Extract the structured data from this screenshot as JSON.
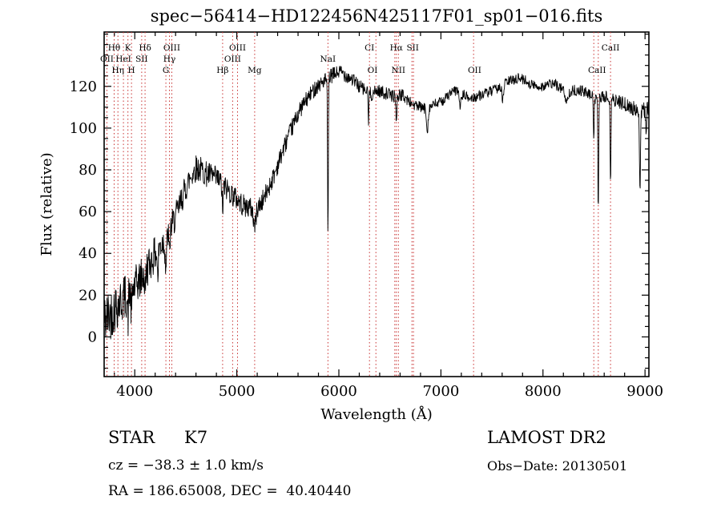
{
  "chart_data": {
    "type": "line",
    "title": "spec−56414−HD122456N425117F01_sp01−016.fits",
    "xlabel": "Wavelength (Å)",
    "ylabel": "Flux (relative)",
    "xlim": [
      3700,
      9038
    ],
    "ylim": [
      -19,
      146
    ],
    "xticks": [
      4000,
      5000,
      6000,
      7000,
      8000,
      9000
    ],
    "x_minor_step": 200,
    "yticks": [
      0,
      20,
      40,
      60,
      80,
      100,
      120
    ],
    "y_minor_step": 5,
    "grid": false,
    "legend": "none",
    "line_color": "#000000",
    "marker_color": "#c83232",
    "marker_label_color": "#8b1a1a",
    "series": [
      {
        "name": "spectrum",
        "samples": 1500,
        "noise_seed": 42,
        "continuum": [
          [
            3700,
            8
          ],
          [
            3760,
            11
          ],
          [
            3820,
            15
          ],
          [
            3880,
            18
          ],
          [
            3940,
            21
          ],
          [
            4000,
            24
          ],
          [
            4060,
            28
          ],
          [
            4120,
            33
          ],
          [
            4180,
            38
          ],
          [
            4240,
            43
          ],
          [
            4300,
            47
          ],
          [
            4360,
            53
          ],
          [
            4420,
            60
          ],
          [
            4480,
            69
          ],
          [
            4540,
            76
          ],
          [
            4600,
            81
          ],
          [
            4650,
            80
          ],
          [
            4700,
            78
          ],
          [
            4760,
            77
          ],
          [
            4820,
            75
          ],
          [
            4880,
            72
          ],
          [
            4940,
            69
          ],
          [
            5000,
            66
          ],
          [
            5060,
            63
          ],
          [
            5120,
            62
          ],
          [
            5180,
            61
          ],
          [
            5240,
            64
          ],
          [
            5300,
            70
          ],
          [
            5360,
            77
          ],
          [
            5420,
            85
          ],
          [
            5480,
            93
          ],
          [
            5540,
            100
          ],
          [
            5600,
            107
          ],
          [
            5660,
            112
          ],
          [
            5720,
            116
          ],
          [
            5780,
            120
          ],
          [
            5840,
            122
          ],
          [
            5900,
            124
          ],
          [
            5960,
            126
          ],
          [
            6020,
            127
          ],
          [
            6080,
            125
          ],
          [
            6140,
            123
          ],
          [
            6200,
            120
          ],
          [
            6260,
            118
          ],
          [
            6320,
            116
          ],
          [
            6380,
            118
          ],
          [
            6440,
            117
          ],
          [
            6500,
            116
          ],
          [
            6560,
            115
          ],
          [
            6620,
            116
          ],
          [
            6680,
            113
          ],
          [
            6740,
            111
          ],
          [
            6800,
            110
          ],
          [
            6860,
            109
          ],
          [
            6920,
            111
          ],
          [
            6980,
            112
          ],
          [
            7040,
            114
          ],
          [
            7100,
            117
          ],
          [
            7160,
            118
          ],
          [
            7220,
            116
          ],
          [
            7280,
            114
          ],
          [
            7340,
            115
          ],
          [
            7400,
            116
          ],
          [
            7460,
            117
          ],
          [
            7520,
            118
          ],
          [
            7580,
            120
          ],
          [
            7640,
            122
          ],
          [
            7700,
            123
          ],
          [
            7760,
            124
          ],
          [
            7820,
            123
          ],
          [
            7880,
            121
          ],
          [
            7940,
            120
          ],
          [
            8000,
            120
          ],
          [
            8060,
            121
          ],
          [
            8120,
            121
          ],
          [
            8180,
            119
          ],
          [
            8240,
            117
          ],
          [
            8300,
            118
          ],
          [
            8360,
            118
          ],
          [
            8420,
            117
          ],
          [
            8480,
            115
          ],
          [
            8540,
            114
          ],
          [
            8600,
            115
          ],
          [
            8660,
            114
          ],
          [
            8720,
            113
          ],
          [
            8780,
            112
          ],
          [
            8840,
            110
          ],
          [
            8900,
            109
          ],
          [
            8960,
            108
          ],
          [
            9038,
            110
          ]
        ],
        "absorption_features": [
          {
            "center": 3933,
            "depth": 12,
            "sigma": 5
          },
          {
            "center": 3968,
            "depth": 12,
            "sigma": 5
          },
          {
            "center": 4101,
            "depth": 10,
            "sigma": 5
          },
          {
            "center": 4226,
            "depth": 14,
            "sigma": 5
          },
          {
            "center": 4305,
            "depth": 14,
            "sigma": 7
          },
          {
            "center": 4340,
            "depth": 12,
            "sigma": 5
          },
          {
            "center": 4861,
            "depth": 13,
            "sigma": 5
          },
          {
            "center": 5175,
            "depth": 8,
            "sigma": 12
          },
          {
            "center": 5893,
            "depth": 76,
            "sigma": 4
          },
          {
            "center": 6290,
            "depth": 16,
            "sigma": 3
          },
          {
            "center": 6563,
            "depth": 14,
            "sigma": 4
          },
          {
            "center": 6867,
            "depth": 10,
            "sigma": 8
          },
          {
            "center": 7190,
            "depth": 6,
            "sigma": 10
          },
          {
            "center": 7605,
            "depth": 8,
            "sigma": 8
          },
          {
            "center": 8230,
            "depth": 6,
            "sigma": 10
          },
          {
            "center": 8498,
            "depth": 18,
            "sigma": 4
          },
          {
            "center": 8542,
            "depth": 55,
            "sigma": 4
          },
          {
            "center": 8662,
            "depth": 40,
            "sigma": 4
          },
          {
            "center": 8950,
            "depth": 38,
            "sigma": 5
          },
          {
            "center": 9010,
            "depth": 15,
            "sigma": 4
          }
        ],
        "noise_profile": [
          [
            3700,
            13
          ],
          [
            4000,
            10
          ],
          [
            4400,
            7
          ],
          [
            4800,
            6
          ],
          [
            5200,
            5
          ],
          [
            5600,
            4
          ],
          [
            6000,
            3.5
          ],
          [
            6500,
            3
          ],
          [
            7000,
            2.5
          ],
          [
            8200,
            2.5
          ],
          [
            8600,
            3
          ],
          [
            9038,
            4
          ]
        ]
      }
    ],
    "spectral_lines": {
      "wavelengths": [
        3727,
        3798,
        3835,
        3889,
        3933,
        3968,
        4068,
        4101,
        4305,
        4340,
        4363,
        4861,
        4959,
        5007,
        5175,
        5893,
        6300,
        6363,
        6548,
        6563,
        6583,
        6716,
        6731,
        7320,
        8498,
        8542,
        8662
      ],
      "labels": [
        {
          "text": "Hθ",
          "wavelength": 3798,
          "row": 1
        },
        {
          "text": "K",
          "wavelength": 3933,
          "row": 1
        },
        {
          "text": "Hδ",
          "wavelength": 4101,
          "row": 1
        },
        {
          "text": "OIII",
          "wavelength": 4363,
          "row": 1
        },
        {
          "text": "OIII",
          "wavelength": 5007,
          "row": 1
        },
        {
          "text": "CI",
          "wavelength": 6300,
          "row": 1
        },
        {
          "text": "Hα",
          "wavelength": 6563,
          "row": 1
        },
        {
          "text": "SII",
          "wavelength": 6724,
          "row": 1
        },
        {
          "text": "CaII",
          "wavelength": 8662,
          "row": 1
        },
        {
          "text": "OII",
          "wavelength": 3727,
          "row": 2
        },
        {
          "text": "HeI",
          "wavelength": 3889,
          "row": 2
        },
        {
          "text": "SII",
          "wavelength": 4068,
          "row": 2
        },
        {
          "text": "Hγ",
          "wavelength": 4340,
          "row": 2
        },
        {
          "text": "OIII",
          "wavelength": 4959,
          "row": 2
        },
        {
          "text": "NaI",
          "wavelength": 5893,
          "row": 2
        },
        {
          "text": "Hη",
          "wavelength": 3835,
          "row": 3
        },
        {
          "text": "H",
          "wavelength": 3968,
          "row": 3
        },
        {
          "text": "G",
          "wavelength": 4305,
          "row": 3
        },
        {
          "text": "Hβ",
          "wavelength": 4861,
          "row": 3
        },
        {
          "text": "Mg",
          "wavelength": 5175,
          "row": 3
        },
        {
          "text": "OI",
          "wavelength": 6330,
          "row": 3
        },
        {
          "text": "NII",
          "wavelength": 6583,
          "row": 3
        },
        {
          "text": "OII",
          "wavelength": 7330,
          "row": 3
        },
        {
          "text": "CaII",
          "wavelength": 8530,
          "row": 3
        }
      ]
    }
  },
  "footer": {
    "object_type": "STAR",
    "subclass": "K7",
    "survey": "LAMOST DR2",
    "cz": "cz = −38.3 ± 1.0 km/s",
    "obs_date": "Obs−Date: 20130501",
    "coords": "RA = 186.65008, DEC =  40.40440"
  }
}
